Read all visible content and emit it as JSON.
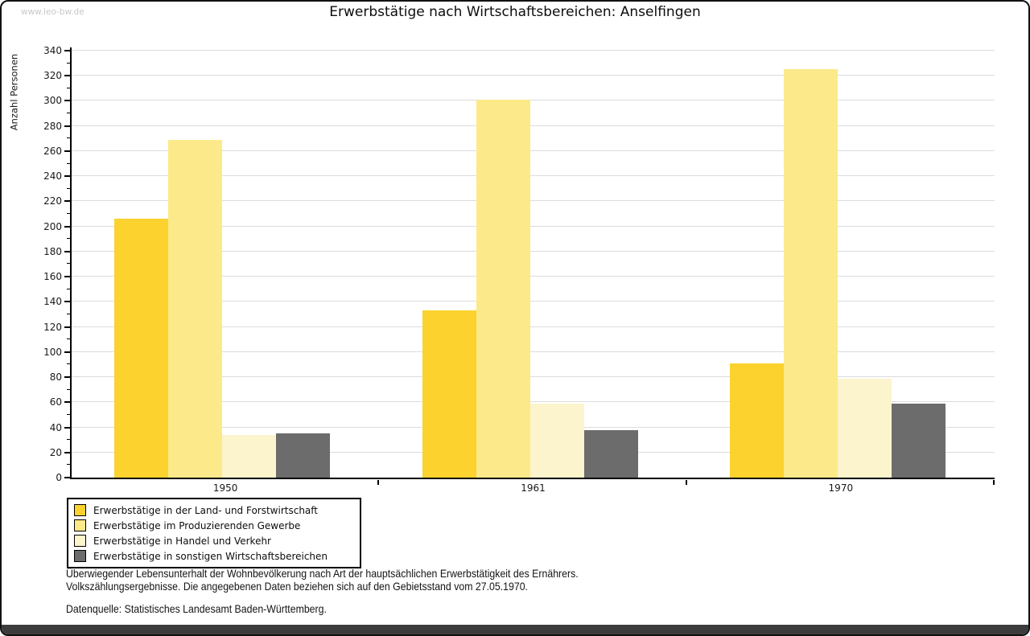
{
  "watermark": "www.leo-bw.de",
  "title": "Erwerbstätige nach Wirtschaftsbereichen: Anselfingen",
  "chart_data": {
    "type": "bar",
    "title": "Erwerbstätige nach Wirtschaftsbereichen: Anselfingen",
    "xlabel": "",
    "ylabel": "Anzahl Personen",
    "ylim": [
      0,
      340
    ],
    "ytick_major": 20,
    "ytick_minor": 10,
    "grid": true,
    "legend_position": "bottom-left",
    "categories": [
      "1950",
      "1961",
      "1970"
    ],
    "series": [
      {
        "name": "Erwerbstätige in der Land- und Forstwirtschaft",
        "color": "#FCD22E",
        "values": [
          206,
          133,
          91
        ]
      },
      {
        "name": "Erwerbstätige im Produzierenden Gewerbe",
        "color": "#FCE98A",
        "values": [
          269,
          301,
          325
        ]
      },
      {
        "name": "Erwerbstätige in Handel und Verkehr",
        "color": "#FCF4CD",
        "values": [
          34,
          59,
          79
        ]
      },
      {
        "name": "Erwerbstätige in sonstigen Wirtschaftsbereichen",
        "color": "#6C6C6C",
        "values": [
          35,
          38,
          59
        ]
      }
    ]
  },
  "footer": {
    "note_line1": "Überwiegender Lebensunterhalt der Wohnbevölkerung nach Art der hauptsächlichen Erwerbstätigkeit des Ernährers.",
    "note_line2": "Volkszählungsergebnisse. Die angegebenen Daten beziehen sich auf den Gebietsstand vom 27.05.1970.",
    "source": "Datenquelle: Statistisches Landesamt Baden-Württemberg."
  }
}
